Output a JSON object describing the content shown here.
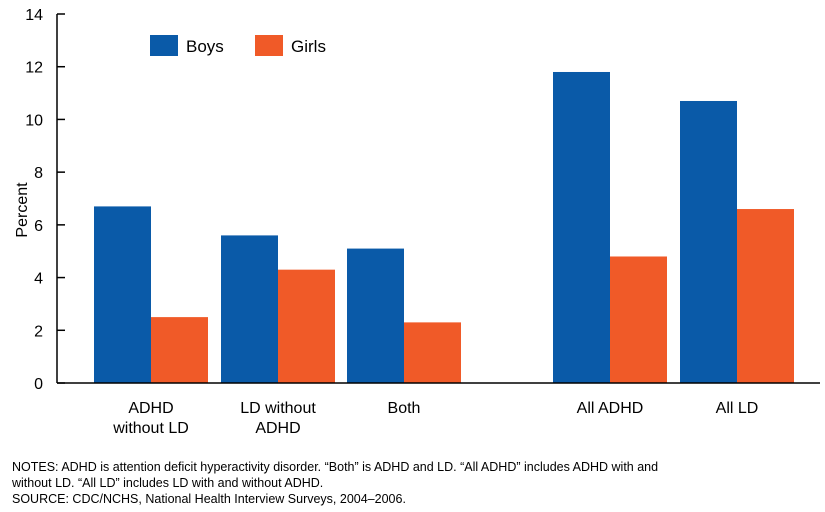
{
  "chart_data": {
    "type": "bar",
    "title": "",
    "xlabel": "",
    "ylabel": "Percent",
    "ylim": [
      0,
      14
    ],
    "yticks": [
      0,
      2,
      4,
      6,
      8,
      10,
      12,
      14
    ],
    "grid": false,
    "legend_position": "top-left",
    "categories": [
      [
        "ADHD",
        "without LD"
      ],
      [
        "LD without",
        "ADHD"
      ],
      [
        "Both"
      ],
      [
        "All ADHD"
      ],
      [
        "All LD"
      ]
    ],
    "series": [
      {
        "name": "Boys",
        "color": "#0a5aa8",
        "values": [
          6.7,
          5.6,
          5.1,
          11.8,
          10.7
        ]
      },
      {
        "name": "Girls",
        "color": "#f05a28",
        "values": [
          2.5,
          4.3,
          2.3,
          4.8,
          6.6
        ]
      }
    ]
  },
  "notes": {
    "line1": "NOTES: ADHD is attention deficit hyperactivity disorder. “Both” is ADHD and LD. “All ADHD” includes ADHD with and",
    "line2": "without LD.  “All LD” includes LD with and without ADHD.",
    "source": "SOURCE: CDC/NCHS, National Health Interview Surveys, 2004–2006."
  }
}
